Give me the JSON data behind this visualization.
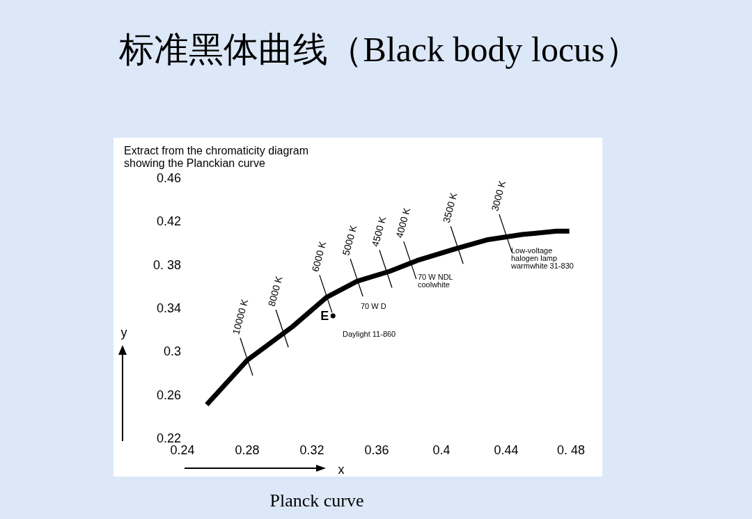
{
  "chart_data": {
    "type": "line",
    "title": "标准黑体曲线（Black body locus）",
    "subtitle": "Extract from the chromaticity diagram showing the Planckian curve",
    "xlabel": "x",
    "ylabel": "y",
    "xlim": [
      0.24,
      0.48
    ],
    "ylim": [
      0.22,
      0.46
    ],
    "xticks": [
      0.24,
      0.28,
      0.32,
      0.36,
      0.4,
      0.44,
      {
        "value": 0.48,
        "label": "0. 48"
      }
    ],
    "yticks": [
      0.22,
      0.26,
      0.3,
      0.34,
      {
        "value": 0.38,
        "label": "0. 38"
      },
      0.42,
      0.46
    ],
    "series": [
      {
        "color": "#000000",
        "x": [
          0.255,
          0.28,
          0.308,
          0.329,
          0.348,
          0.368,
          0.385,
          0.409,
          0.428,
          0.45,
          0.471,
          0.479
        ],
        "values": [
          0.251,
          0.292,
          0.323,
          0.35,
          0.365,
          0.374,
          0.384,
          0.395,
          0.403,
          0.408,
          0.411,
          0.411
        ]
      },
      {
        "type": "scatter",
        "color": "#000000",
        "x": [
          0.333
        ],
        "values": [
          0.333
        ]
      }
    ],
    "annotations": [
      {
        "text": "10000 K",
        "x": 0.28,
        "y": 0.292
      },
      {
        "text": "8000 K",
        "x": 0.302,
        "y": 0.318
      },
      {
        "text": "6000 K",
        "x": 0.329,
        "y": 0.35
      },
      {
        "text": "5000 K",
        "x": 0.348,
        "y": 0.365
      },
      {
        "text": "4500 K",
        "x": 0.366,
        "y": 0.373
      },
      {
        "text": "4000 K",
        "x": 0.381,
        "y": 0.381
      },
      {
        "text": "3500 K",
        "x": 0.41,
        "y": 0.395
      },
      {
        "text": "3000 K",
        "x": 0.44,
        "y": 0.406
      },
      {
        "text": "E",
        "x": 0.333,
        "y": 0.333
      },
      "Daylight 11-860",
      "70 W D",
      "70 W NDL coolwhite",
      "Low-voltage halogen lamp warmwhite 31-830",
      "Planck curve"
    ]
  }
}
